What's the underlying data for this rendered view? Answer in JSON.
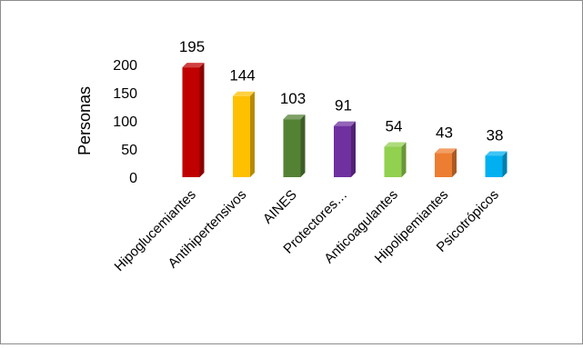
{
  "chart_data": {
    "type": "bar",
    "title": "",
    "xlabel": "",
    "ylabel": "Personas",
    "ylim": [
      0,
      200
    ],
    "yticks": [
      0,
      50,
      100,
      150,
      200
    ],
    "grid": false,
    "legend": "none",
    "categories": [
      "Hipoglucemiantes",
      "Antihipertensivos",
      "AINES",
      "Protectores…",
      "Anticoagulantes",
      "Hipolipemiantes",
      "Psicotrópicos"
    ],
    "values": [
      195,
      144,
      103,
      91,
      54,
      43,
      38
    ],
    "value_labels": [
      "195",
      "144",
      "103",
      "91",
      "54",
      "43",
      "38"
    ],
    "colors": [
      "#c00000",
      "#ffc000",
      "#548235",
      "#7030a0",
      "#92d050",
      "#ed7d31",
      "#00b0f0"
    ]
  }
}
